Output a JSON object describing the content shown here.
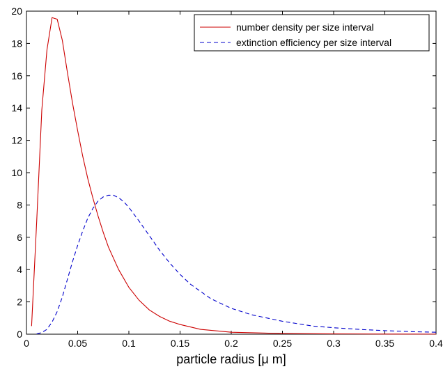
{
  "chart_data": {
    "type": "line",
    "title": "",
    "xlabel": "particle radius [μ m]",
    "ylabel": "",
    "xlim": [
      0,
      0.4
    ],
    "ylim": [
      0,
      20
    ],
    "xticks": [
      0,
      0.05,
      0.1,
      0.15,
      0.2,
      0.25,
      0.3,
      0.35,
      0.4
    ],
    "xtick_labels": [
      "0",
      "0.05",
      "0.1",
      "0.15",
      "0.2",
      "0.25",
      "0.3",
      "0.35",
      "0.4"
    ],
    "yticks": [
      0,
      2,
      4,
      6,
      8,
      10,
      12,
      14,
      16,
      18,
      20
    ],
    "ytick_labels": [
      "0",
      "2",
      "4",
      "6",
      "8",
      "10",
      "12",
      "14",
      "16",
      "18",
      "20"
    ],
    "grid": false,
    "legend_position": "top-right",
    "series": [
      {
        "name": "number density per size interval",
        "color": "#cc0000",
        "style": "solid",
        "x": [
          0.005,
          0.01,
          0.015,
          0.02,
          0.025,
          0.03,
          0.035,
          0.04,
          0.045,
          0.05,
          0.055,
          0.06,
          0.065,
          0.07,
          0.075,
          0.08,
          0.09,
          0.1,
          0.11,
          0.12,
          0.13,
          0.14,
          0.15,
          0.17,
          0.2,
          0.25,
          0.3,
          0.35,
          0.4
        ],
        "y": [
          0.5,
          7.0,
          13.9,
          17.6,
          19.6,
          19.5,
          18.2,
          16.2,
          14.3,
          12.6,
          11.0,
          9.6,
          8.4,
          7.3,
          6.3,
          5.4,
          4.0,
          2.9,
          2.1,
          1.5,
          1.1,
          0.8,
          0.6,
          0.3,
          0.12,
          0.04,
          0.02,
          0.01,
          0.005
        ]
      },
      {
        "name": "extinction efficiency per size interval",
        "color": "#0000cc",
        "style": "dashed",
        "x": [
          0.01,
          0.015,
          0.02,
          0.025,
          0.03,
          0.035,
          0.04,
          0.045,
          0.05,
          0.055,
          0.06,
          0.065,
          0.07,
          0.075,
          0.08,
          0.085,
          0.09,
          0.095,
          0.1,
          0.11,
          0.12,
          0.13,
          0.14,
          0.15,
          0.16,
          0.18,
          0.2,
          0.22,
          0.25,
          0.28,
          0.3,
          0.33,
          0.35,
          0.38,
          0.4
        ],
        "y": [
          0.02,
          0.1,
          0.3,
          0.75,
          1.4,
          2.3,
          3.4,
          4.5,
          5.5,
          6.4,
          7.2,
          7.8,
          8.25,
          8.5,
          8.6,
          8.6,
          8.45,
          8.2,
          7.85,
          7.0,
          6.1,
          5.2,
          4.4,
          3.7,
          3.1,
          2.2,
          1.6,
          1.2,
          0.8,
          0.5,
          0.4,
          0.28,
          0.22,
          0.15,
          0.12
        ]
      }
    ]
  }
}
